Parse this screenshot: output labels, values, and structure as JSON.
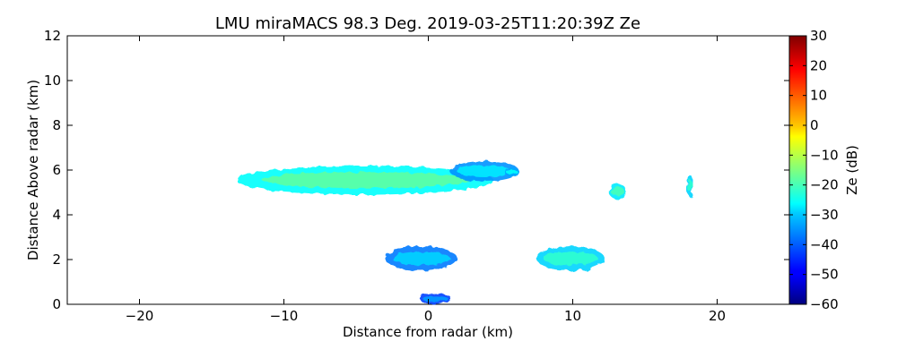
{
  "chart_data": {
    "type": "heatmap",
    "title": "LMU miraMACS 98.3 Deg. 2019-03-25T11:20:39Z  Ze",
    "xlabel": "Distance from radar (km)",
    "ylabel": "Distance Above radar  (km)",
    "xlim": [
      -25,
      25
    ],
    "ylim": [
      0,
      12
    ],
    "x_ticks": [
      -20,
      -10,
      0,
      10,
      20
    ],
    "y_ticks": [
      0,
      2,
      4,
      6,
      8,
      10,
      12
    ],
    "grid": false,
    "colorbar": {
      "label": "Ze (dB)",
      "range": [
        -60,
        30
      ],
      "ticks": [
        -60,
        -50,
        -40,
        -30,
        -20,
        -10,
        0,
        10,
        20,
        30
      ],
      "colormap": "jet"
    },
    "echoes": [
      {
        "name": "main-cloud-layer",
        "x": [
          -13.3,
          4.5
        ],
        "y": [
          4.9,
          6.2
        ],
        "ze": -18
      },
      {
        "name": "layer-tail",
        "x": [
          1.5,
          6.3
        ],
        "y": [
          5.5,
          6.4
        ],
        "ze": -28
      },
      {
        "name": "small-cell-6km",
        "x": [
          5.3,
          6.3
        ],
        "y": [
          5.7,
          6.1
        ],
        "ze": -26
      },
      {
        "name": "low-cloud",
        "x": [
          -3.0,
          2.0
        ],
        "y": [
          1.5,
          2.6
        ],
        "ze": -30
      },
      {
        "name": "low-cloud-right",
        "x": [
          7.5,
          12.2
        ],
        "y": [
          1.5,
          2.6
        ],
        "ze": -22
      },
      {
        "name": "streak-13km",
        "x": [
          12.5,
          13.7
        ],
        "y": [
          4.7,
          5.4
        ],
        "ze": -20
      },
      {
        "name": "streak-18km",
        "x": [
          17.9,
          18.3
        ],
        "y": [
          4.8,
          5.8
        ],
        "ze": -22
      },
      {
        "name": "near-ground-clutter",
        "x": [
          -0.6,
          1.6
        ],
        "y": [
          0.0,
          0.5
        ],
        "ze": -35
      }
    ]
  }
}
